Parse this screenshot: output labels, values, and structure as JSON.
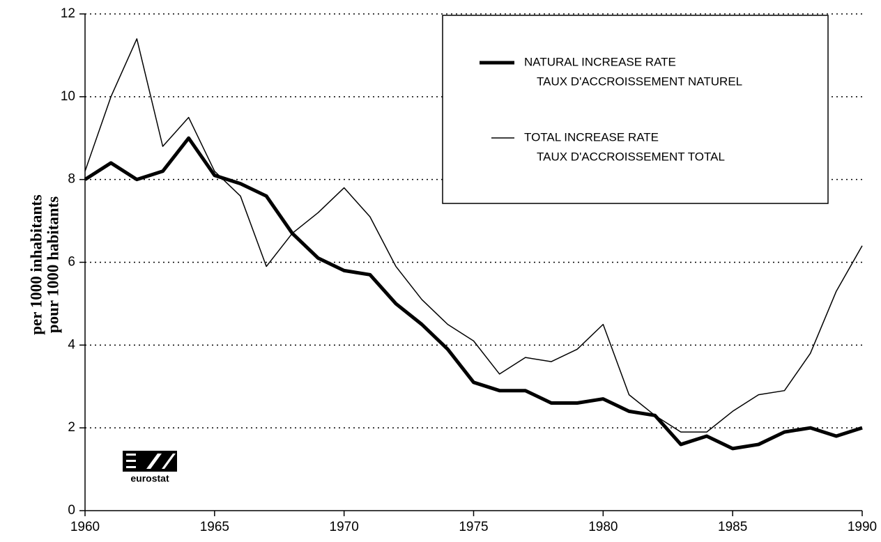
{
  "chart_data": {
    "type": "line",
    "ylabel": [
      "per 1000 inhabitants",
      "pour 1000 habitants"
    ],
    "logo": "eurostat",
    "x": [
      1960,
      1961,
      1962,
      1963,
      1964,
      1965,
      1966,
      1967,
      1968,
      1969,
      1970,
      1971,
      1972,
      1973,
      1974,
      1975,
      1976,
      1977,
      1978,
      1979,
      1980,
      1981,
      1982,
      1983,
      1984,
      1985,
      1986,
      1987,
      1988,
      1989,
      1990
    ],
    "series": [
      {
        "name": [
          "NATURAL INCREASE RATE",
          "TAUX D'ACCROISSEMENT NATUREL"
        ],
        "color": "#000",
        "width": 5,
        "values": [
          8.0,
          8.4,
          8.0,
          8.2,
          9.0,
          8.1,
          7.9,
          7.6,
          6.7,
          6.1,
          5.8,
          5.7,
          5.0,
          4.5,
          3.9,
          3.1,
          2.9,
          2.9,
          2.6,
          2.6,
          2.7,
          2.4,
          2.3,
          1.6,
          1.8,
          1.5,
          1.6,
          1.9,
          2.0,
          1.8,
          2.0
        ]
      },
      {
        "name": [
          "TOTAL INCREASE RATE",
          "TAUX D'ACCROISSEMENT TOTAL"
        ],
        "color": "#000",
        "width": 1.5,
        "values": [
          8.2,
          10.0,
          11.4,
          8.8,
          9.5,
          8.2,
          7.6,
          5.9,
          6.7,
          7.2,
          7.8,
          7.1,
          5.9,
          5.1,
          4.5,
          4.1,
          3.3,
          3.7,
          3.6,
          3.9,
          4.5,
          2.8,
          2.3,
          1.9,
          1.9,
          2.4,
          2.8,
          2.9,
          3.8,
          5.3,
          6.4
        ]
      }
    ],
    "xlim": [
      1960,
      1990
    ],
    "xticks": [
      1960,
      1965,
      1970,
      1975,
      1980,
      1985,
      1990
    ],
    "ylim": [
      0,
      12
    ],
    "yticks": [
      0,
      2,
      4,
      6,
      8,
      10,
      12
    ],
    "grid": true
  }
}
